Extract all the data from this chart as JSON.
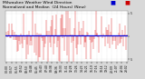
{
  "title_line1": "Milwaukee Weather Wind Direction",
  "title_line2": "Normalized and Median  (24 Hours) (New)",
  "background_color": "#d8d8d8",
  "plot_bg_color": "#ffffff",
  "bar_color": "#dd0000",
  "median_color": "#0000dd",
  "median_value": 0.15,
  "y_min": -5.5,
  "y_max": 5.5,
  "n_points": 144,
  "seed": 42,
  "grid_color": "#bbbbbb",
  "legend_norm_color": "#0000cc",
  "legend_median_color": "#cc0000",
  "title_fontsize": 3.2,
  "tick_fontsize": 2.2,
  "ytick_labels": [
    "5",
    "",
    "-5"
  ],
  "ytick_values": [
    5,
    0,
    -5
  ]
}
